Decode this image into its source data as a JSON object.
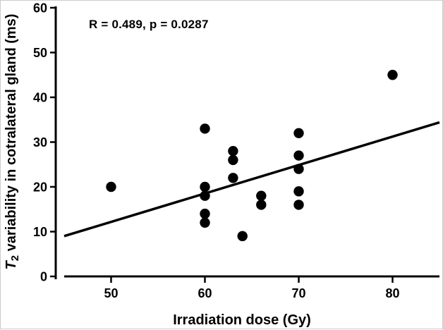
{
  "figure": {
    "background_color": "#ffffff",
    "ink_color": "#000000",
    "annotation": "R = 0.489, p = 0.0287",
    "x_axis": {
      "label": "Irradiation dose (Gy)",
      "tick_labels": [
        "50",
        "60",
        "70",
        "80"
      ]
    },
    "y_axis": {
      "label_italic_part": "T",
      "label_subscript": "2",
      "label_rest": " variability in cotralateral gland (ms)",
      "tick_labels": [
        "0",
        "10",
        "20",
        "30",
        "40",
        "50",
        "60"
      ]
    }
  },
  "chart_data": {
    "type": "scatter",
    "title": "",
    "xlabel": "Irradiation dose (Gy)",
    "ylabel": "T2 variability in cotralateral gland (ms)",
    "annotation": "R = 0.489, p = 0.0287",
    "xlim": [
      45,
      85
    ],
    "ylim": [
      0,
      60
    ],
    "x_ticks": [
      50,
      60,
      70,
      80
    ],
    "y_ticks": [
      0,
      10,
      20,
      30,
      40,
      50,
      60
    ],
    "grid": false,
    "legend": "none",
    "marker": {
      "shape": "circle",
      "color": "#000000",
      "radius_px": 7.2
    },
    "points": [
      {
        "x": 50,
        "y": 20
      },
      {
        "x": 60,
        "y": 33
      },
      {
        "x": 60,
        "y": 20
      },
      {
        "x": 60,
        "y": 18
      },
      {
        "x": 60,
        "y": 14
      },
      {
        "x": 60,
        "y": 12
      },
      {
        "x": 63,
        "y": 28
      },
      {
        "x": 63,
        "y": 26
      },
      {
        "x": 63,
        "y": 22
      },
      {
        "x": 64,
        "y": 9
      },
      {
        "x": 66,
        "y": 18
      },
      {
        "x": 66,
        "y": 16
      },
      {
        "x": 70,
        "y": 32
      },
      {
        "x": 70,
        "y": 27
      },
      {
        "x": 70,
        "y": 24
      },
      {
        "x": 70,
        "y": 19
      },
      {
        "x": 70,
        "y": 16
      },
      {
        "x": 80,
        "y": 45
      }
    ],
    "regression_line": {
      "x1": 45,
      "y1": 9.0,
      "x2": 85,
      "y2": 34.4
    }
  }
}
